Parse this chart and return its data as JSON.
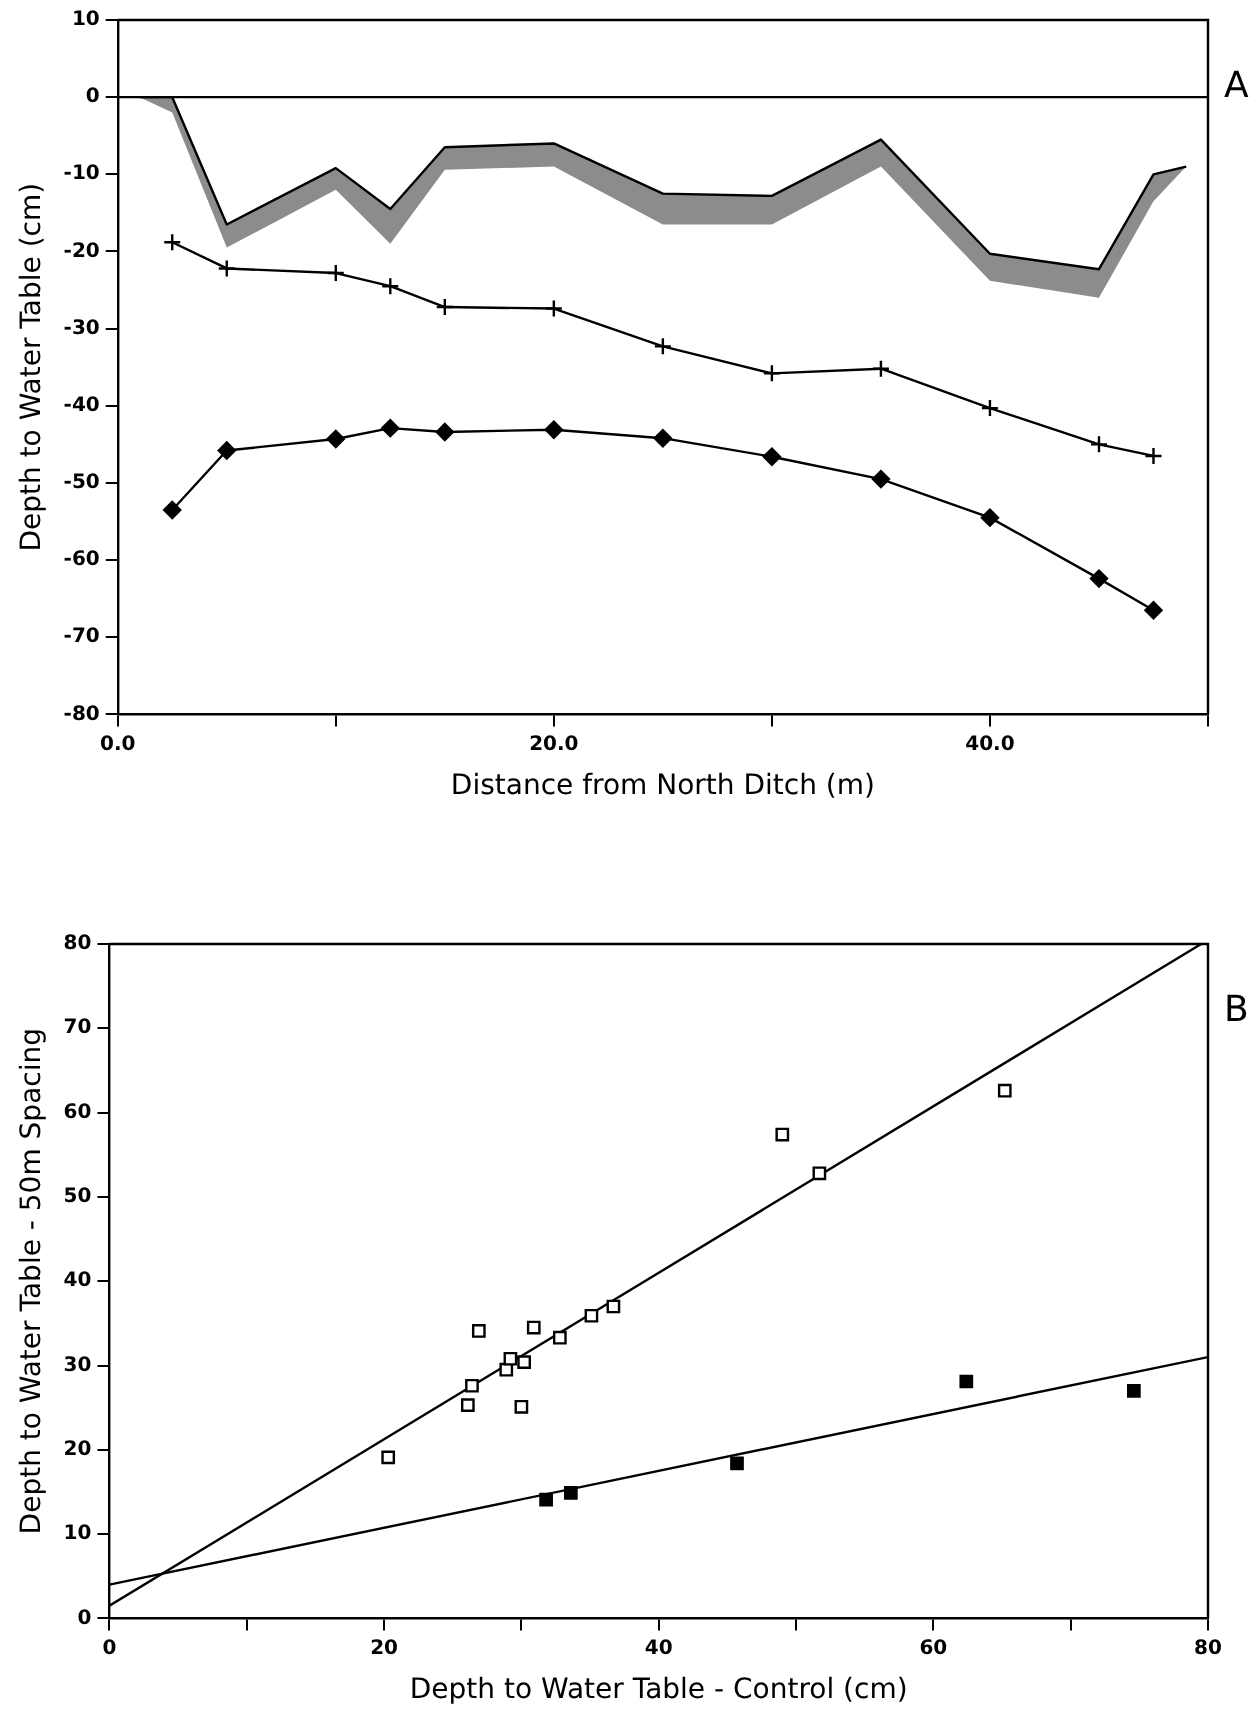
{
  "chart_data": [
    {
      "type": "line",
      "xlabel": "Distance from North Ditch (m)",
      "ylabel": "Depth to Water Table (cm)",
      "annotations": [
        "A"
      ],
      "xlim": [
        0,
        50
      ],
      "xticks": [
        {
          "value": 0,
          "label": "0.0"
        },
        {
          "value": 10,
          "label": null
        },
        {
          "value": 20,
          "label": "20.0"
        },
        {
          "value": 30,
          "label": null
        },
        {
          "value": 40,
          "label": "40.0"
        },
        {
          "value": 50,
          "label": null
        }
      ],
      "ylim": [
        -80,
        10
      ],
      "yticks": [
        10,
        0,
        -10,
        -20,
        -30,
        -40,
        -50,
        -60,
        -70,
        -80
      ],
      "grid": false,
      "legend": false,
      "ref_lines": [
        {
          "axis": "y",
          "value": 0,
          "label": null,
          "color": "#000000"
        }
      ],
      "series": [
        {
          "color": "#000000",
          "x": [
            1,
            2.5,
            5,
            10,
            12.5,
            15,
            20,
            25,
            30,
            35,
            40,
            45,
            47.5,
            49
          ],
          "values": [
            0,
            0,
            -16.5,
            -9.2,
            -14.5,
            -6.5,
            -6,
            -12.5,
            -12.8,
            -5.5,
            -20.3,
            -22.3,
            -10,
            -9
          ],
          "lower": [
            0,
            -2,
            -19.5,
            -12,
            -19,
            -9.4,
            -9,
            -16.5,
            -16.5,
            -9,
            -23.8,
            -26,
            -13.5,
            -9
          ],
          "upper": [
            0,
            0,
            -16.5,
            -9.2,
            -14.5,
            -6.5,
            -6,
            -12.5,
            -12.8,
            -5.5,
            -20.3,
            -22.3,
            -10,
            -9
          ]
        },
        {
          "color": "#000000",
          "marker": "cross",
          "x": [
            2.5,
            5,
            10,
            12.5,
            15,
            20,
            25,
            30,
            35,
            40,
            45,
            47.5
          ],
          "values": [
            -18.8,
            -22.2,
            -22.8,
            -24.5,
            -27.2,
            -27.4,
            -32.3,
            -35.8,
            -35.2,
            -40.3,
            -45,
            -46.5
          ]
        },
        {
          "color": "#000000",
          "marker": "diamond",
          "x": [
            2.5,
            5,
            10,
            12.5,
            15,
            20,
            25,
            30,
            35,
            40,
            45,
            47.5
          ],
          "values": [
            -53.5,
            -45.8,
            -44.3,
            -42.9,
            -43.4,
            -43.1,
            -44.2,
            -46.6,
            -49.5,
            -54.5,
            -62.4,
            -66.5
          ]
        }
      ]
    },
    {
      "type": "scatter",
      "xlabel": "Depth to Water Table - Control (cm)",
      "ylabel": "Depth to Water Table - 50m Spacing",
      "annotations": [
        "B"
      ],
      "xlim": [
        0,
        80
      ],
      "xticks": [
        0,
        {
          "value": 10,
          "label": null
        },
        20,
        {
          "value": 30,
          "label": null
        },
        40,
        {
          "value": 50,
          "label": null
        },
        60,
        {
          "value": 70,
          "label": null
        },
        80
      ],
      "ylim": [
        0,
        80
      ],
      "yticks": [
        0,
        10,
        20,
        30,
        40,
        50,
        60,
        70,
        80
      ],
      "grid": false,
      "legend": false,
      "marker": "square",
      "series": [
        {
          "color": "#ffffff",
          "x": [
            20.3,
            26.1,
            26.4,
            26.9,
            28.9,
            29.2,
            30.0,
            30.2,
            30.9,
            32.8,
            35.1,
            36.7,
            49.0,
            51.7,
            65.2
          ],
          "values": [
            19.1,
            25.3,
            27.6,
            34.1,
            29.5,
            30.8,
            25.1,
            30.4,
            34.5,
            33.3,
            35.9,
            37.0,
            57.4,
            52.8,
            62.6
          ]
        },
        {
          "color": "#000000",
          "x": [
            31.8,
            33.6,
            45.7,
            62.4,
            74.6
          ],
          "values": [
            14.1,
            14.9,
            18.4,
            28.1,
            27.0
          ]
        },
        {
          "type": "line",
          "marker": "none",
          "color": "#000000",
          "x": [
            0,
            79.5
          ],
          "values": [
            1.5,
            80
          ]
        },
        {
          "type": "line",
          "marker": "none",
          "color": "#000000",
          "x": [
            0,
            80
          ],
          "values": [
            4,
            31
          ]
        }
      ]
    }
  ]
}
